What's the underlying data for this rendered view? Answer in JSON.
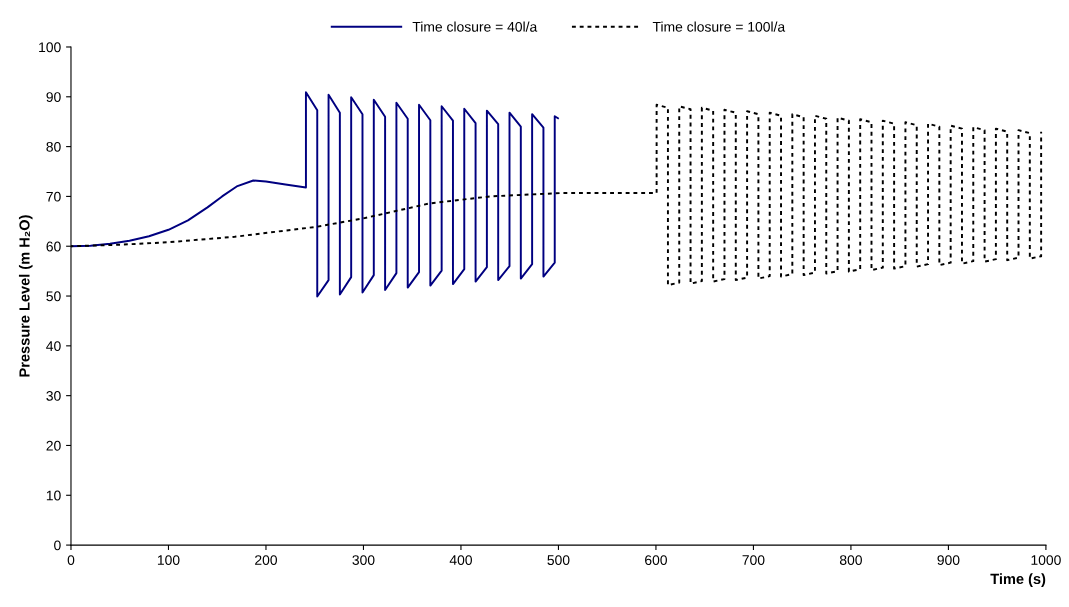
{
  "chart_data": {
    "type": "line",
    "xlabel": "Time (s)",
    "ylabel": "Pressure Level (m H₂O)",
    "xlim": [
      0,
      1000
    ],
    "ylim": [
      0,
      100
    ],
    "xticks": [
      0,
      100,
      200,
      300,
      400,
      500,
      600,
      700,
      800,
      900,
      1000
    ],
    "yticks": [
      0,
      10,
      20,
      30,
      40,
      50,
      60,
      70,
      80,
      90,
      100
    ],
    "grid": false,
    "legend": "top",
    "marker": "none",
    "series": [
      {
        "name": "Time closure = 40l/a",
        "color": "#000080",
        "line_style": "solid",
        "x": [
          0,
          20,
          40,
          60,
          80,
          100,
          120,
          140,
          155,
          170,
          187,
          200,
          220,
          241,
          241,
          252.6,
          252.6,
          264.2,
          264.2,
          275.8,
          275.8,
          287.4,
          287.4,
          299.0,
          299.0,
          310.6,
          310.6,
          322.2,
          322.2,
          333.8,
          333.8,
          345.4,
          345.4,
          357.0,
          357.0,
          368.6,
          368.6,
          380.2,
          380.2,
          391.8,
          391.8,
          403.4,
          403.4,
          415.0,
          415.0,
          426.6,
          426.6,
          438.2,
          438.2,
          449.8,
          449.8,
          461.4,
          461.4,
          473.0,
          473.0,
          484.6,
          484.6,
          496.2,
          496.2,
          499.5
        ],
        "values": [
          60.0,
          60.1,
          60.5,
          61.1,
          62.0,
          63.3,
          65.2,
          67.8,
          70.0,
          72.0,
          73.2,
          73.0,
          72.4,
          71.8,
          90.9,
          87.3,
          49.9,
          53.2,
          90.4,
          86.8,
          50.3,
          53.8,
          89.9,
          86.5,
          50.7,
          54.2,
          89.4,
          86.0,
          51.2,
          54.6,
          88.8,
          85.6,
          51.7,
          54.8,
          88.4,
          85.3,
          52.1,
          55.1,
          88.1,
          85.2,
          52.4,
          55.4,
          87.6,
          84.7,
          52.9,
          55.8,
          87.2,
          84.5,
          53.2,
          56.0,
          86.8,
          84.0,
          53.5,
          56.4,
          86.5,
          83.8,
          53.9,
          56.7,
          86.1,
          85.7
        ]
      },
      {
        "name": "Time closure = 100l/a",
        "color": "#000000",
        "line_style": "dotted",
        "x": [
          0,
          50,
          100,
          168,
          252,
          300,
          368,
          430,
          505,
          600.7,
          600.7,
          612.3,
          612.3,
          623.9,
          623.9,
          635.5,
          635.5,
          647.1,
          647.1,
          658.7,
          658.7,
          670.3,
          670.3,
          681.9,
          681.9,
          693.5,
          693.5,
          705.1,
          705.1,
          716.7,
          716.7,
          728.3,
          728.3,
          739.9,
          739.9,
          751.5,
          751.5,
          763.1,
          763.1,
          774.7,
          774.7,
          786.3,
          786.3,
          797.9,
          797.9,
          809.5,
          809.5,
          821.1,
          821.1,
          832.7,
          832.7,
          844.3,
          844.3,
          855.9,
          855.9,
          867.5,
          867.5,
          879.1,
          879.1,
          890.7,
          890.7,
          902.3,
          902.3,
          913.9,
          913.9,
          925.5,
          925.5,
          937.1,
          937.1,
          948.7,
          948.7,
          960.3,
          960.3,
          971.9,
          971.9,
          983.5,
          983.5,
          995.1,
          995.1
        ],
        "values": [
          60.0,
          60.3,
          60.8,
          61.9,
          63.9,
          65.6,
          68.6,
          70.0,
          70.7,
          70.7,
          88.4,
          87.8,
          52.2,
          52.7,
          88.1,
          87.5,
          52.5,
          53.0,
          87.8,
          87.2,
          52.9,
          53.4,
          87.4,
          86.8,
          53.2,
          53.7,
          87.1,
          86.5,
          53.5,
          54.0,
          86.8,
          86.2,
          53.9,
          54.4,
          86.5,
          85.9,
          54.2,
          54.7,
          86.2,
          85.6,
          54.5,
          55.0,
          85.8,
          85.2,
          54.9,
          55.4,
          85.5,
          84.9,
          55.2,
          55.7,
          85.2,
          84.6,
          55.5,
          56.0,
          84.9,
          84.3,
          55.9,
          56.4,
          84.6,
          84.0,
          56.2,
          56.7,
          84.2,
          83.6,
          56.5,
          57.0,
          83.9,
          83.3,
          56.9,
          57.4,
          83.6,
          83.0,
          57.2,
          57.7,
          83.3,
          82.7,
          57.5,
          58.0,
          83.0
        ]
      }
    ]
  }
}
